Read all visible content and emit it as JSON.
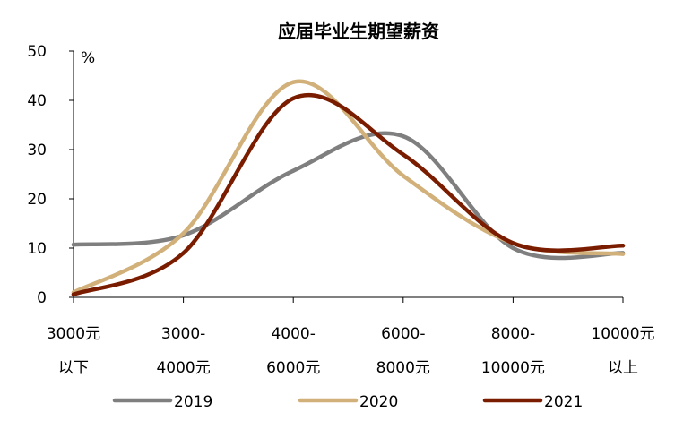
{
  "chart_data": {
    "type": "line",
    "title": "应届毕业生期望薪资",
    "y_unit_label": "%",
    "xlabel": "",
    "ylabel": "",
    "ylim": [
      0,
      50
    ],
    "yticks": [
      0,
      10,
      20,
      30,
      40,
      50
    ],
    "grid": false,
    "smooth": true,
    "legend_position": "bottom",
    "categories": [
      [
        "3000元",
        "以下"
      ],
      [
        "3000-",
        "4000元"
      ],
      [
        "4000-",
        "6000元"
      ],
      [
        "6000-",
        "8000元"
      ],
      [
        "8000-",
        "10000元"
      ],
      [
        "10000元",
        "以上"
      ]
    ],
    "series": [
      {
        "name": "2019",
        "color": "#7f7f7f",
        "values": [
          10.7,
          12.6,
          25.7,
          32.7,
          10.0,
          9.0
        ]
      },
      {
        "name": "2020",
        "color": "#d1b07a",
        "values": [
          1.0,
          13.0,
          43.7,
          24.7,
          11.0,
          8.8
        ]
      },
      {
        "name": "2021",
        "color": "#7a1c00",
        "values": [
          0.6,
          9.0,
          40.4,
          29.0,
          11.0,
          10.5
        ]
      }
    ]
  }
}
